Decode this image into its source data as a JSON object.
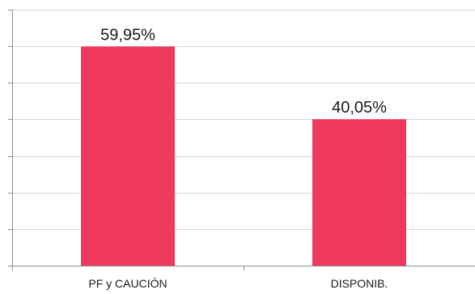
{
  "chart_data": {
    "type": "bar",
    "categories": [
      "PF y CAUCIÓN",
      "DISPONIB."
    ],
    "values": [
      59.95,
      40.05
    ],
    "data_labels": [
      "59,95%",
      "40,05%"
    ],
    "ylim": [
      0,
      70
    ],
    "y_tick_count": 7,
    "grid": true,
    "legend": "none",
    "bar_color": "#ef3a5d",
    "grid_color": "#d9d9d9",
    "axis_color": "#8c8c8c",
    "text_color": "#1a1a1a"
  }
}
